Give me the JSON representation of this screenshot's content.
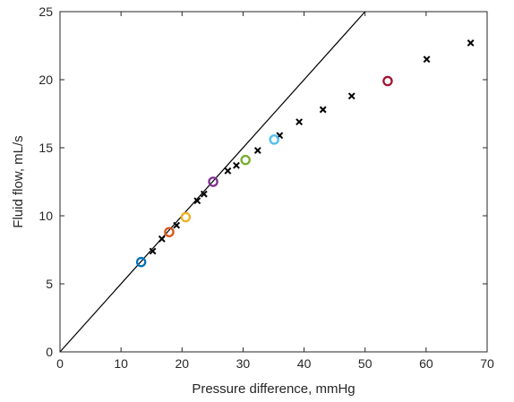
{
  "chart_data": {
    "type": "scatter",
    "xlabel": "Pressure difference, mmHg",
    "ylabel": "Fluid flow, mL/s",
    "xlim": [
      0,
      70
    ],
    "ylim": [
      0,
      25
    ],
    "xticks": [
      0,
      10,
      20,
      30,
      40,
      50,
      60,
      70
    ],
    "yticks": [
      0,
      5,
      10,
      15,
      20,
      25
    ],
    "grid": false,
    "box": true,
    "reference_line": {
      "x": [
        0,
        50
      ],
      "y": [
        0,
        25
      ],
      "color": "#000000"
    },
    "series": [
      {
        "marker": "x",
        "color": "#000000",
        "points": [
          [
            15.2,
            7.4
          ],
          [
            16.7,
            8.3
          ],
          [
            19.1,
            9.3
          ],
          [
            22.5,
            11.1
          ],
          [
            23.6,
            11.6
          ],
          [
            27.5,
            13.3
          ],
          [
            28.9,
            13.7
          ],
          [
            32.4,
            14.8
          ],
          [
            36.0,
            15.9
          ],
          [
            39.2,
            16.9
          ],
          [
            43.1,
            17.8
          ],
          [
            47.8,
            18.8
          ],
          [
            60.1,
            21.5
          ],
          [
            67.3,
            22.7
          ]
        ]
      },
      {
        "marker": "circle",
        "points": [
          {
            "x": 13.3,
            "y": 6.6,
            "color": "#0072BD"
          },
          {
            "x": 17.9,
            "y": 8.8,
            "color": "#D95319"
          },
          {
            "x": 20.6,
            "y": 9.9,
            "color": "#EDB120"
          },
          {
            "x": 25.1,
            "y": 12.5,
            "color": "#7E2F8E"
          },
          {
            "x": 30.4,
            "y": 14.1,
            "color": "#77AC30"
          },
          {
            "x": 35.1,
            "y": 15.6,
            "color": "#4DBEEE"
          },
          {
            "x": 53.7,
            "y": 19.9,
            "color": "#A2142F"
          }
        ]
      }
    ]
  }
}
